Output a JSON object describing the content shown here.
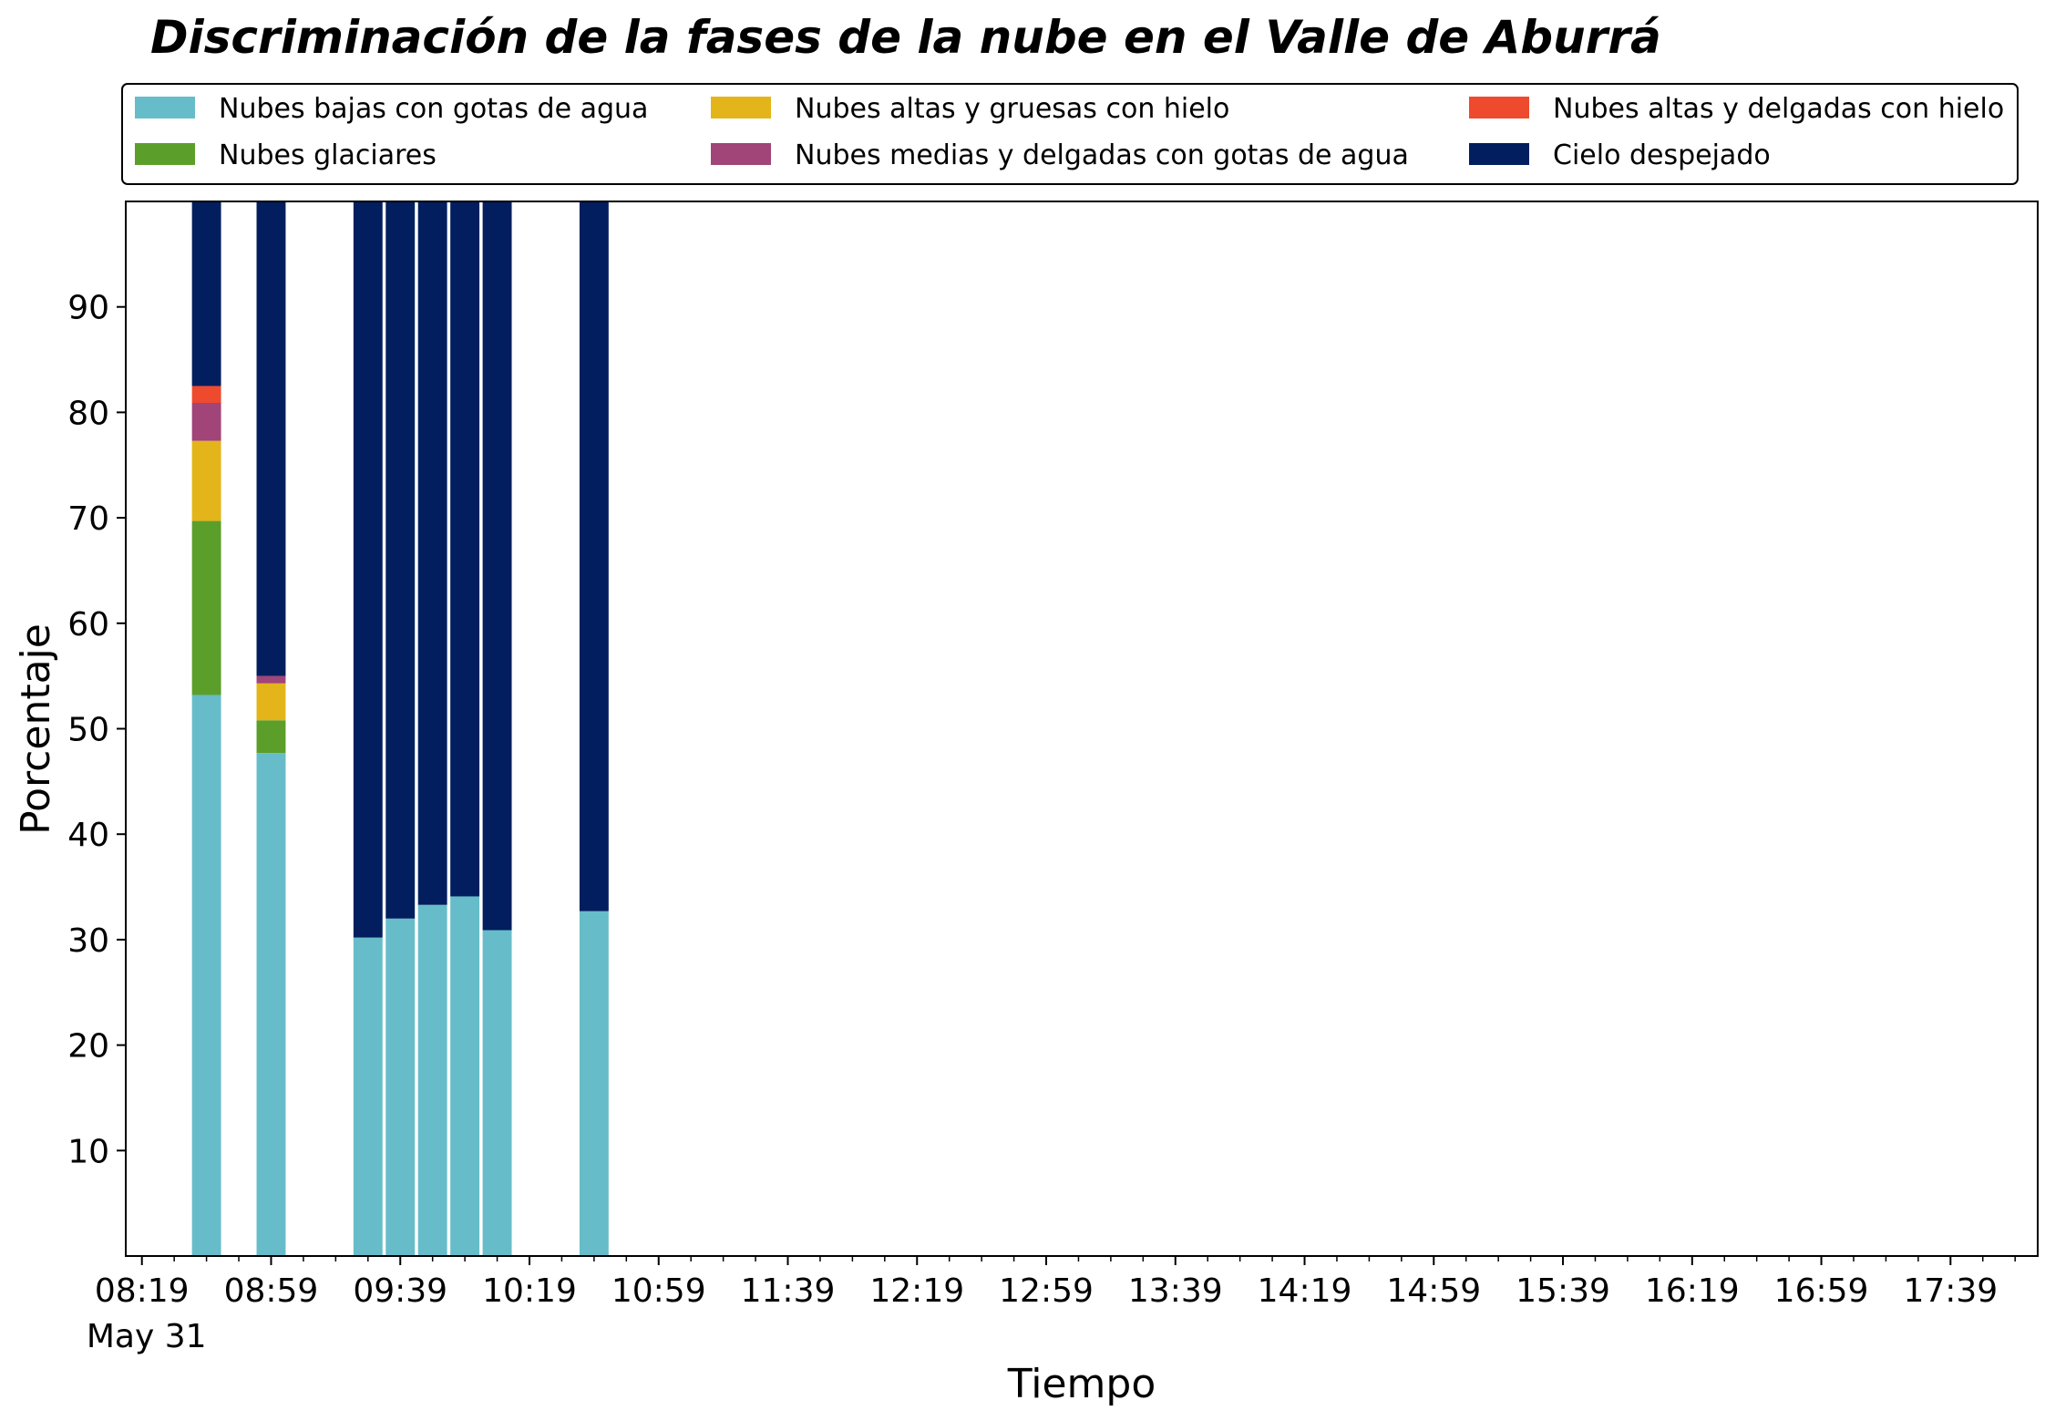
{
  "chart_data": {
    "type": "bar",
    "stacked": true,
    "title": "Discriminación de la fases de la nube en el Valle de Aburrá",
    "xlabel": "Tiempo",
    "ylabel": "Porcentaje",
    "ylim": [
      0,
      100
    ],
    "yticks": [
      10,
      20,
      30,
      40,
      50,
      60,
      70,
      80,
      90
    ],
    "xlim": [
      "08:14",
      "18:06"
    ],
    "xticks": [
      "08:19",
      "08:59",
      "09:39",
      "10:19",
      "10:59",
      "11:39",
      "12:19",
      "12:59",
      "13:39",
      "14:19",
      "14:59",
      "15:39",
      "16:19",
      "16:59",
      "17:39"
    ],
    "date_label": "May 31",
    "bar_width_minutes": 9,
    "grid": false,
    "legend_location": "top, outside axes, 3 columns",
    "times": [
      "08:39",
      "08:59",
      "09:29",
      "09:39",
      "09:49",
      "09:59",
      "10:09",
      "10:39"
    ],
    "series": [
      {
        "name": "Nubes bajas con gotas de agua",
        "color": "#66BDC9",
        "values": [
          53.2,
          47.7,
          30.2,
          32.0,
          33.3,
          34.1,
          30.9,
          32.7
        ]
      },
      {
        "name": "Nubes glaciares",
        "color": "#5C9E2A",
        "values": [
          16.5,
          3.1,
          0,
          0,
          0,
          0,
          0,
          0
        ]
      },
      {
        "name": "Nubes altas y gruesas con hielo",
        "color": "#E3B51A",
        "values": [
          7.6,
          3.5,
          0,
          0,
          0,
          0,
          0,
          0
        ]
      },
      {
        "name": "Nubes medias y delgadas con gotas de agua",
        "color": "#A14478",
        "values": [
          3.6,
          0.7,
          0,
          0,
          0,
          0,
          0,
          0
        ]
      },
      {
        "name": "Nubes altas y delgadas con hielo",
        "color": "#EE4A2E",
        "values": [
          1.6,
          0,
          0,
          0,
          0,
          0,
          0,
          0
        ]
      },
      {
        "name": "Cielo despejado",
        "color": "#021E5E",
        "values": [
          17.5,
          45.0,
          69.8,
          68.0,
          66.7,
          65.9,
          69.1,
          67.3
        ]
      }
    ]
  }
}
